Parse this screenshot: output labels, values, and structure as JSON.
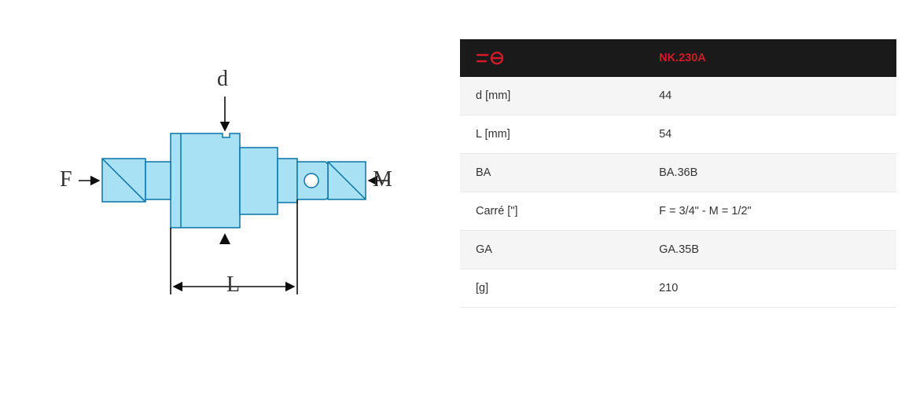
{
  "diagram": {
    "label_d": "d",
    "label_L": "L",
    "label_F": "F",
    "label_M": "M",
    "colors": {
      "shape_fill": "#a8e0f4",
      "shape_stroke": "#0b74a5",
      "dim_stroke": "#0d0d0d",
      "force_arrow": "#111111",
      "label_text": "#333333"
    },
    "stroke_width_shape": 1.5,
    "stroke_width_dim": 1.6,
    "label_fontsize_pt": 21
  },
  "table": {
    "header_sku": "NK.230A",
    "header_bg": "#1a1a1a",
    "header_fg": "#d11a2a",
    "row_bg_odd": "#f5f5f5",
    "row_bg_even": "#ffffff",
    "border_color": "#e9e9e9",
    "text_color": "#333333",
    "fontsize_pt": 11,
    "rows": [
      {
        "label": "d [mm]",
        "value": "44"
      },
      {
        "label": "L [mm]",
        "value": "54"
      },
      {
        "label": "BA",
        "value": "BA.36B"
      },
      {
        "label": "Carré [\"]",
        "value": "F = 3/4\" - M = 1/2\""
      },
      {
        "label": "GA",
        "value": "GA.35B"
      },
      {
        "label": "[g]",
        "value": "210"
      }
    ]
  }
}
